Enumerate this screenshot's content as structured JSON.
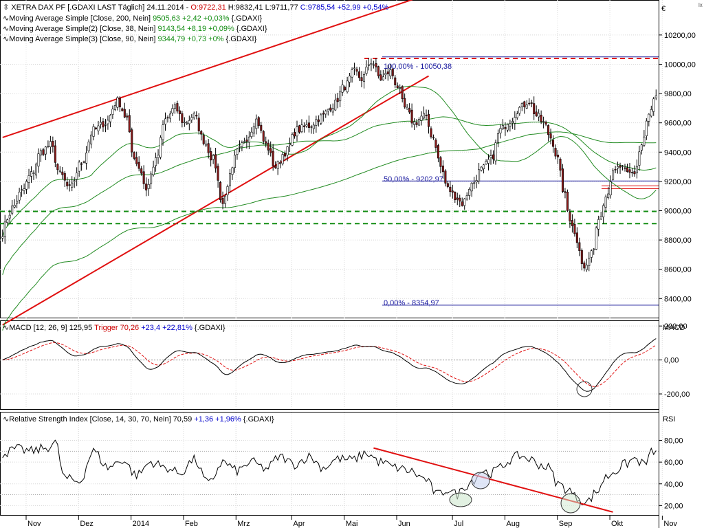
{
  "colors": {
    "up_candle": "#ffffff",
    "down_candle": "#8b1a1a",
    "candle_wick": "#000000",
    "moving_average": "#228b22",
    "trendline": "#e01010",
    "support_dashed": "#138d13",
    "resistance_dashed": "#e01010",
    "fib_line": "#1a1a9a",
    "fib_text": "#1a1aa0",
    "macd_signal": "#e01010",
    "macd_line": "#000000",
    "value_up": "#138d13",
    "value_pos": "#0000cc",
    "value_neg": "#cc0000"
  },
  "corner_icon": "scroll-indicator-icon",
  "price_panel": {
    "line1": {
      "prefix": "XETRA DAX PF [.GDAXI LAST Täglich] 24.11.2014 - ",
      "o_label": "O:9722,31",
      "rest": " H:9832,41 L:9711,77 ",
      "c_label": "C:9785,54 +52,99 +0,54%"
    },
    "line2": {
      "name": "Moving Average Simple [Close, 200, Nein] ",
      "value": "9505,63 +2,42 +0,03%",
      "suffix": " {.GDAXI}"
    },
    "line3": {
      "name": "Moving Average Simple(2) [Close, 38, Nein] ",
      "value": "9143,54 +8,19 +0,09%",
      "suffix": " {.GDAXI}"
    },
    "line4": {
      "name": "Moving Average Simple(3) [Close, 90, Nein] ",
      "value": "9344,79 +0,73 +0%",
      "suffix": " {.GDAXI}"
    },
    "currency": "€",
    "fib_100": "100,00% - 10050,38",
    "fib_50": "50,00% - 9202,97",
    "fib_0": "0,00% - 8354,97"
  },
  "macd_panel": {
    "prefix": "MACD [12, 26, 9] 125,95 ",
    "trigger": "Trigger 70,26",
    "change": " +23,4 +22,81%",
    "suffix": " {.GDAXI}",
    "axis_title": "MACD"
  },
  "rsi_panel": {
    "prefix": "Relative Strength Index [Close, 14, 30, 70, Nein] 70,59 ",
    "change": "+1,36 +1,96%",
    "suffix": " {.GDAXI}",
    "axis_title": "RSI"
  },
  "x_axis": {
    "labels": [
      "Nov",
      "Dez",
      "2014",
      "Feb",
      "Mrz",
      "Apr",
      "Mai",
      "Jun",
      "Jul",
      "Aug",
      "Sep",
      "Okt",
      "Nov"
    ],
    "positions": [
      0.0,
      0.08,
      0.16,
      0.24,
      0.32,
      0.405,
      0.485,
      0.565,
      0.65,
      0.73,
      0.81,
      0.89,
      0.97
    ]
  },
  "chart_data": [
    {
      "type": "candlestick",
      "title": "XETRA DAX PF [.GDAXI LAST Täglich]",
      "y_ticks": [
        8400,
        8600,
        8800,
        9000,
        9200,
        9400,
        9600,
        9800,
        10000,
        10200
      ],
      "y_tick_labels": [
        "8400,00",
        "8600,00",
        "8800,00",
        "9000,00",
        "9200,00",
        "9400,00",
        "9600,00",
        "9800,00",
        "10000,00",
        "10200,00"
      ],
      "ylim": [
        8270,
        10420
      ],
      "close_anchors": [
        [
          0,
          8850
        ],
        [
          2,
          8950
        ],
        [
          4,
          9020
        ],
        [
          8,
          9130
        ],
        [
          12,
          9250
        ],
        [
          16,
          9400
        ],
        [
          20,
          9450
        ],
        [
          24,
          9250
        ],
        [
          28,
          9150
        ],
        [
          33,
          9330
        ],
        [
          38,
          9550
        ],
        [
          43,
          9600
        ],
        [
          48,
          9750
        ],
        [
          52,
          9630
        ],
        [
          54,
          9400
        ],
        [
          57,
          9300
        ],
        [
          60,
          9150
        ],
        [
          64,
          9340
        ],
        [
          68,
          9620
        ],
        [
          72,
          9700
        ],
        [
          76,
          9600
        ],
        [
          80,
          9650
        ],
        [
          84,
          9480
        ],
        [
          88,
          9350
        ],
        [
          92,
          9050
        ],
        [
          95,
          9230
        ],
        [
          98,
          9400
        ],
        [
          102,
          9500
        ],
        [
          106,
          9620
        ],
        [
          110,
          9450
        ],
        [
          114,
          9300
        ],
        [
          118,
          9400
        ],
        [
          123,
          9550
        ],
        [
          128,
          9580
        ],
        [
          133,
          9640
        ],
        [
          138,
          9720
        ],
        [
          143,
          9850
        ],
        [
          147,
          9950
        ],
        [
          150,
          9900
        ],
        [
          154,
          10020
        ],
        [
          158,
          9900
        ],
        [
          162,
          9950
        ],
        [
          165,
          9850
        ],
        [
          168,
          9700
        ],
        [
          172,
          9600
        ],
        [
          176,
          9650
        ],
        [
          180,
          9500
        ],
        [
          183,
          9300
        ],
        [
          186,
          9150
        ],
        [
          189,
          9100
        ],
        [
          192,
          9050
        ],
        [
          196,
          9180
        ],
        [
          200,
          9280
        ],
        [
          204,
          9350
        ],
        [
          208,
          9550
        ],
        [
          212,
          9620
        ],
        [
          216,
          9700
        ],
        [
          220,
          9750
        ],
        [
          223,
          9650
        ],
        [
          226,
          9600
        ],
        [
          229,
          9500
        ],
        [
          232,
          9350
        ],
        [
          234,
          9150
        ],
        [
          237,
          8950
        ],
        [
          240,
          8800
        ],
        [
          243,
          8600
        ],
        [
          246,
          8700
        ],
        [
          249,
          8950
        ],
        [
          252,
          9100
        ],
        [
          255,
          9250
        ],
        [
          258,
          9300
        ],
        [
          261,
          9250
        ],
        [
          264,
          9260
        ],
        [
          267,
          9450
        ],
        [
          270,
          9650
        ],
        [
          273,
          9785
        ]
      ],
      "moving_averages": [
        {
          "name": "Moving Average Simple [Close, 200, Nein]",
          "value_end": 9505.63
        },
        {
          "name": "Moving Average Simple(2) [Close, 38, Nein]",
          "value_end": 9143.54
        },
        {
          "name": "Moving Average Simple(3) [Close, 90, Nein]",
          "value_end": 9344.79
        }
      ],
      "horizontal_levels": [
        {
          "value": 10050.38,
          "label": "100,00% - 10050,38",
          "style": "fib-solid"
        },
        {
          "value": 10040,
          "style": "red-dashed"
        },
        {
          "value": 9202.97,
          "label": "50,00% - 9202,97",
          "style": "fib-solid"
        },
        {
          "value": 8354.97,
          "label": "0,00% - 8354,97",
          "style": "fib-solid"
        },
        {
          "value": 8995,
          "style": "green-dashed"
        },
        {
          "value": 8912,
          "style": "green-dashed"
        },
        {
          "value": 9170,
          "style": "red-double"
        },
        {
          "value": 9150,
          "style": "red-double"
        }
      ],
      "trendlines": [
        {
          "from": [
            0,
            9500
          ],
          "to": [
            180,
            10490
          ]
        },
        {
          "from": [
            0,
            8220
          ],
          "to": [
            178,
            9920
          ]
        }
      ]
    },
    {
      "type": "line",
      "title": "MACD [12, 26, 9]",
      "y_ticks": [
        -200,
        0,
        200
      ],
      "y_tick_labels": [
        "-200,00",
        "0,00",
        "200,00"
      ],
      "ylim": [
        -285,
        225
      ],
      "series": [
        {
          "name": "MACD",
          "value_end": 125.95
        },
        {
          "name": "Trigger",
          "value_end": 70.26
        }
      ]
    },
    {
      "type": "line",
      "title": "Relative Strength Index [Close, 14, 30, 70, Nein]",
      "y_ticks": [
        20,
        40,
        60,
        80
      ],
      "y_tick_labels": [
        "20,00",
        "40,00",
        "60,00",
        "80,00"
      ],
      "ylim": [
        12,
        93
      ],
      "levels": [
        30,
        70
      ],
      "value_end": 70.59,
      "rsi_anchors": [
        [
          0,
          68
        ],
        [
          6,
          72
        ],
        [
          12,
          70
        ],
        [
          18,
          73
        ],
        [
          22,
          78
        ],
        [
          26,
          45
        ],
        [
          32,
          42
        ],
        [
          38,
          70
        ],
        [
          44,
          55
        ],
        [
          50,
          62
        ],
        [
          56,
          48
        ],
        [
          62,
          60
        ],
        [
          68,
          55
        ],
        [
          74,
          50
        ],
        [
          80,
          62
        ],
        [
          86,
          40
        ],
        [
          92,
          60
        ],
        [
          98,
          52
        ],
        [
          104,
          60
        ],
        [
          110,
          54
        ],
        [
          116,
          65
        ],
        [
          122,
          58
        ],
        [
          128,
          65
        ],
        [
          134,
          55
        ],
        [
          140,
          63
        ],
        [
          146,
          62
        ],
        [
          152,
          68
        ],
        [
          158,
          60
        ],
        [
          164,
          55
        ],
        [
          170,
          52
        ],
        [
          176,
          45
        ],
        [
          182,
          30
        ],
        [
          186,
          35
        ],
        [
          190,
          30
        ],
        [
          193,
          38
        ],
        [
          197,
          44
        ],
        [
          200,
          52
        ],
        [
          204,
          50
        ],
        [
          208,
          55
        ],
        [
          212,
          62
        ],
        [
          216,
          66
        ],
        [
          220,
          63
        ],
        [
          224,
          58
        ],
        [
          228,
          55
        ],
        [
          232,
          40
        ],
        [
          236,
          35
        ],
        [
          240,
          27
        ],
        [
          244,
          23
        ],
        [
          248,
          32
        ],
        [
          252,
          46
        ],
        [
          256,
          52
        ],
        [
          260,
          58
        ],
        [
          264,
          63
        ],
        [
          268,
          58
        ],
        [
          272,
          70.59
        ]
      ],
      "trendline": {
        "from": [
          155,
          73
        ],
        "to": [
          255,
          14
        ]
      }
    }
  ]
}
